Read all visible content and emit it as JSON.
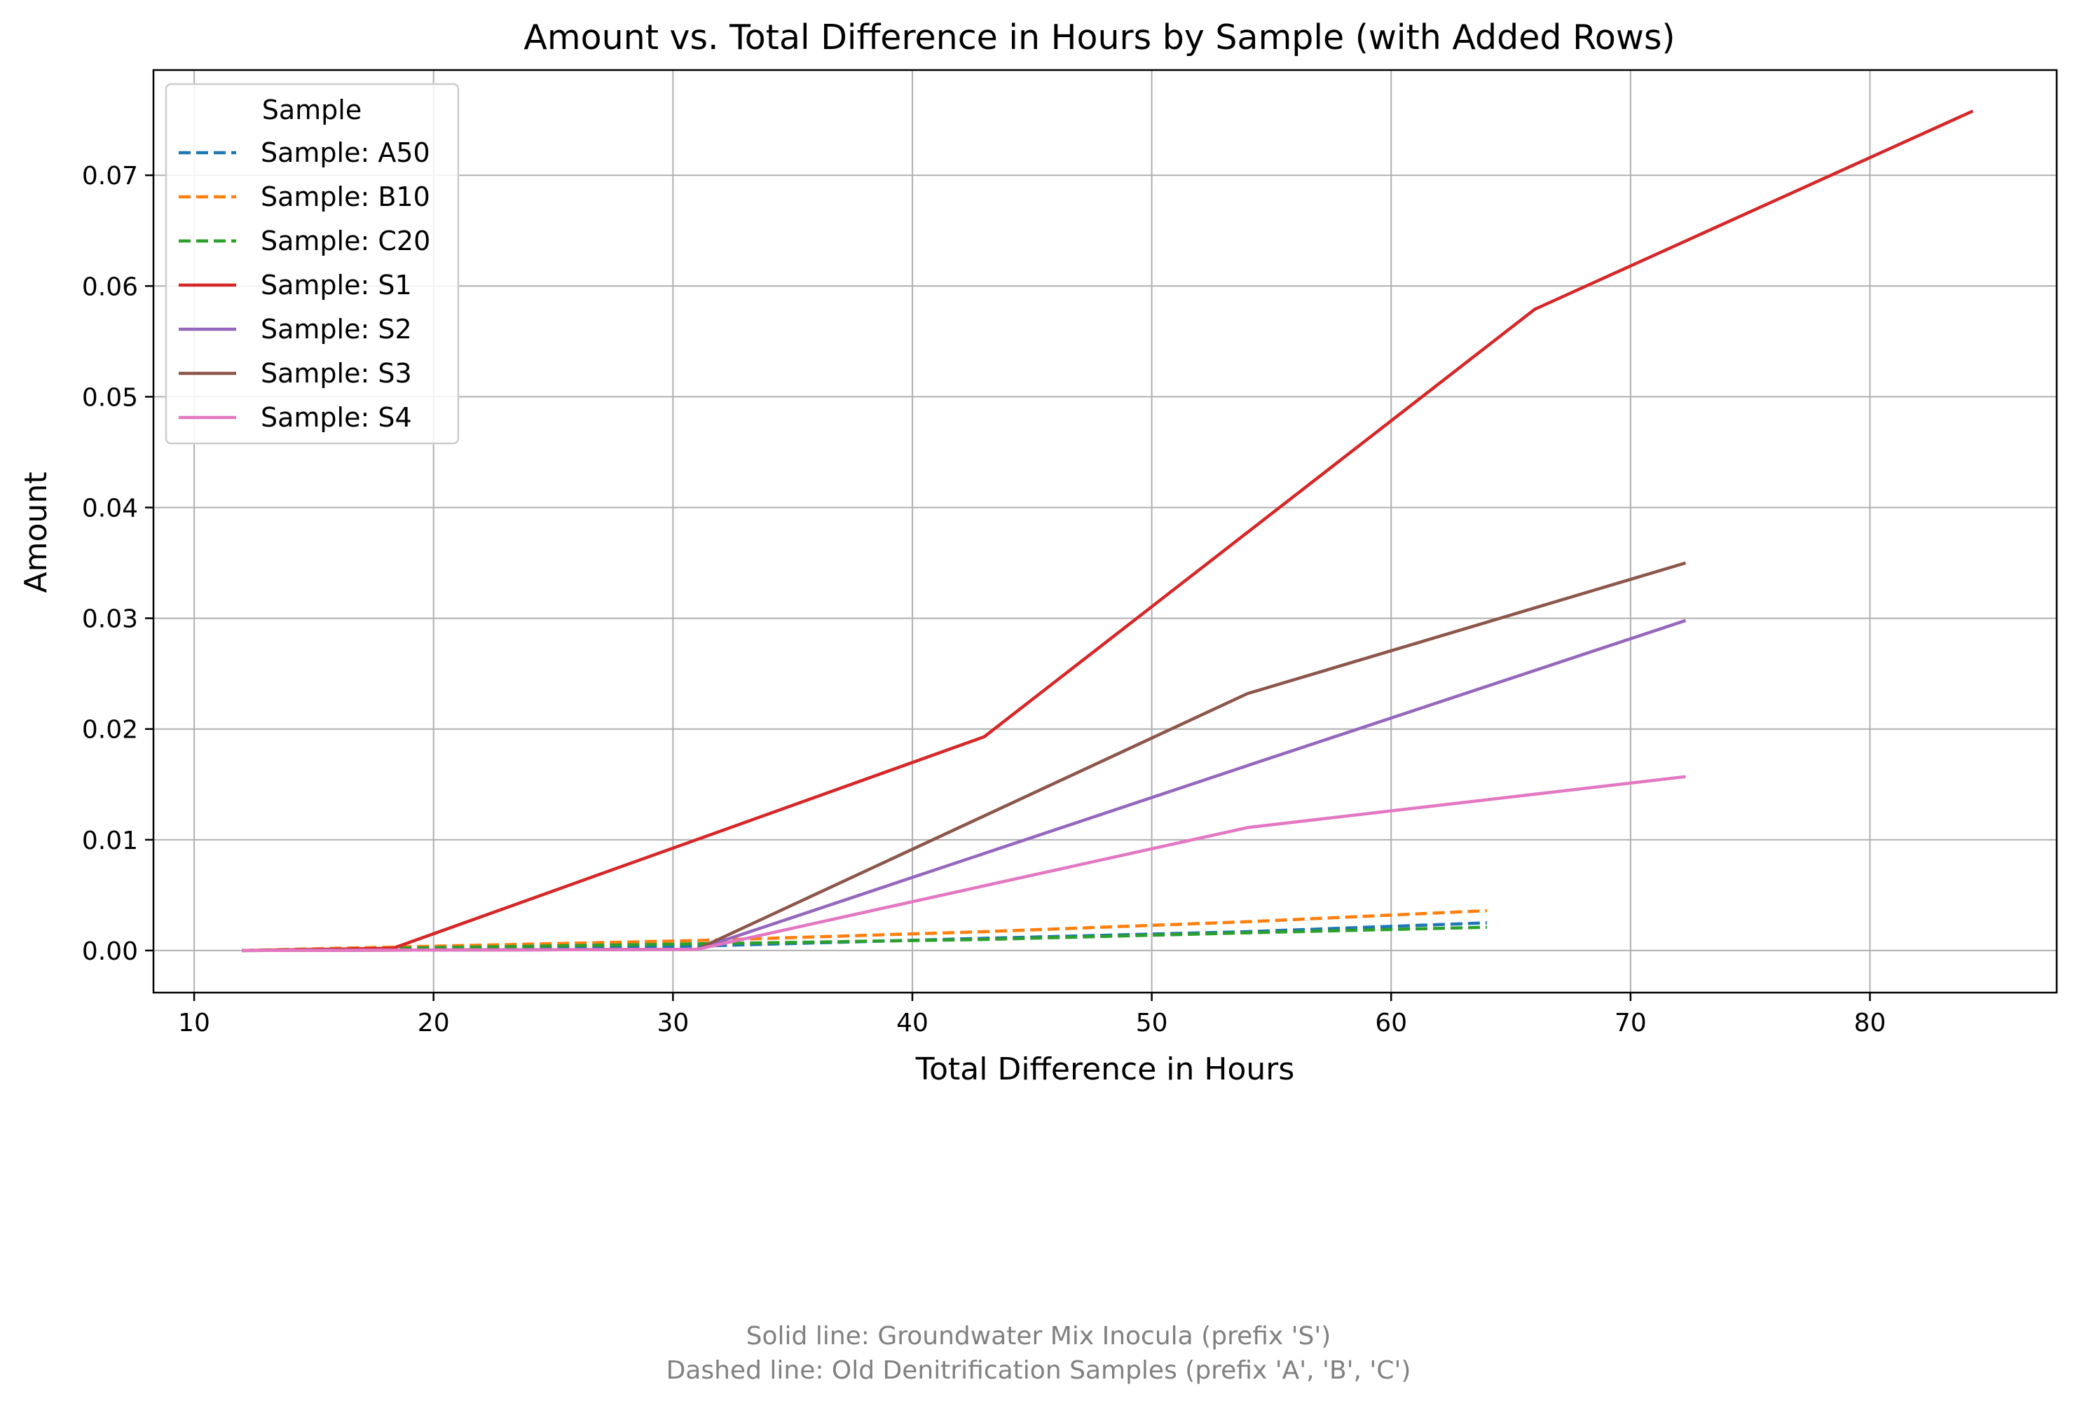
{
  "chart_data": {
    "type": "line",
    "title": "Amount vs. Total Difference in Hours by Sample (with Added Rows)",
    "xlabel": "Total Difference in Hours",
    "ylabel": "Amount",
    "xlim": [
      8.3,
      87.8
    ],
    "ylim": [
      -0.0038,
      0.0795
    ],
    "xticks": [
      10,
      20,
      30,
      40,
      50,
      60,
      70,
      80
    ],
    "yticks": [
      0.0,
      0.01,
      0.02,
      0.03,
      0.04,
      0.05,
      0.06,
      0.07
    ],
    "xtick_labels": [
      "10",
      "20",
      "30",
      "40",
      "50",
      "60",
      "70",
      "80"
    ],
    "ytick_labels": [
      "0.00",
      "0.01",
      "0.02",
      "0.03",
      "0.04",
      "0.05",
      "0.06",
      "0.07"
    ],
    "grid": true,
    "legend": {
      "title": "Sample",
      "position": "upper-left"
    },
    "series": [
      {
        "name": "Sample: A50",
        "style": "dashed",
        "color": "#1f77b4",
        "x": [
          12,
          18,
          31,
          43,
          54,
          64
        ],
        "y": [
          0.0,
          0.0002,
          0.0004,
          0.0011,
          0.0017,
          0.0025
        ]
      },
      {
        "name": "Sample: B10",
        "style": "dashed",
        "color": "#ff7f0e",
        "x": [
          12,
          18,
          31,
          43,
          54,
          64
        ],
        "y": [
          0.0,
          0.0003,
          0.0009,
          0.0017,
          0.0026,
          0.0036
        ]
      },
      {
        "name": "Sample: C20",
        "style": "dashed",
        "color": "#2ca02c",
        "x": [
          12,
          18,
          31,
          43,
          54,
          64
        ],
        "y": [
          0.0,
          0.0002,
          0.0006,
          0.001,
          0.0016,
          0.0021
        ]
      },
      {
        "name": "Sample: S1",
        "style": "solid",
        "color": "#d62728",
        "x": [
          12,
          18.3,
          43,
          66,
          84.3
        ],
        "y": [
          0.0,
          0.0002,
          0.0193,
          0.0579,
          0.0758
        ]
      },
      {
        "name": "Sample: S2",
        "style": "solid",
        "color": "#9467bd",
        "x": [
          12,
          31,
          54,
          72.3
        ],
        "y": [
          0.0,
          0.0001,
          0.0167,
          0.0298
        ]
      },
      {
        "name": "Sample: S3",
        "style": "solid",
        "color": "#8c564b",
        "x": [
          12,
          31,
          54,
          72.3
        ],
        "y": [
          0.0,
          0.0001,
          0.0232,
          0.035
        ]
      },
      {
        "name": "Sample: S4",
        "style": "solid",
        "color": "#e377c2",
        "x": [
          12,
          31,
          54,
          72.3
        ],
        "y": [
          0.0,
          0.0001,
          0.0111,
          0.0157
        ]
      }
    ]
  },
  "footnote": {
    "line1": "Solid line: Groundwater Mix Inocula (prefix 'S')",
    "line2": "Dashed line: Old Denitrification Samples (prefix 'A', 'B', 'C')"
  }
}
